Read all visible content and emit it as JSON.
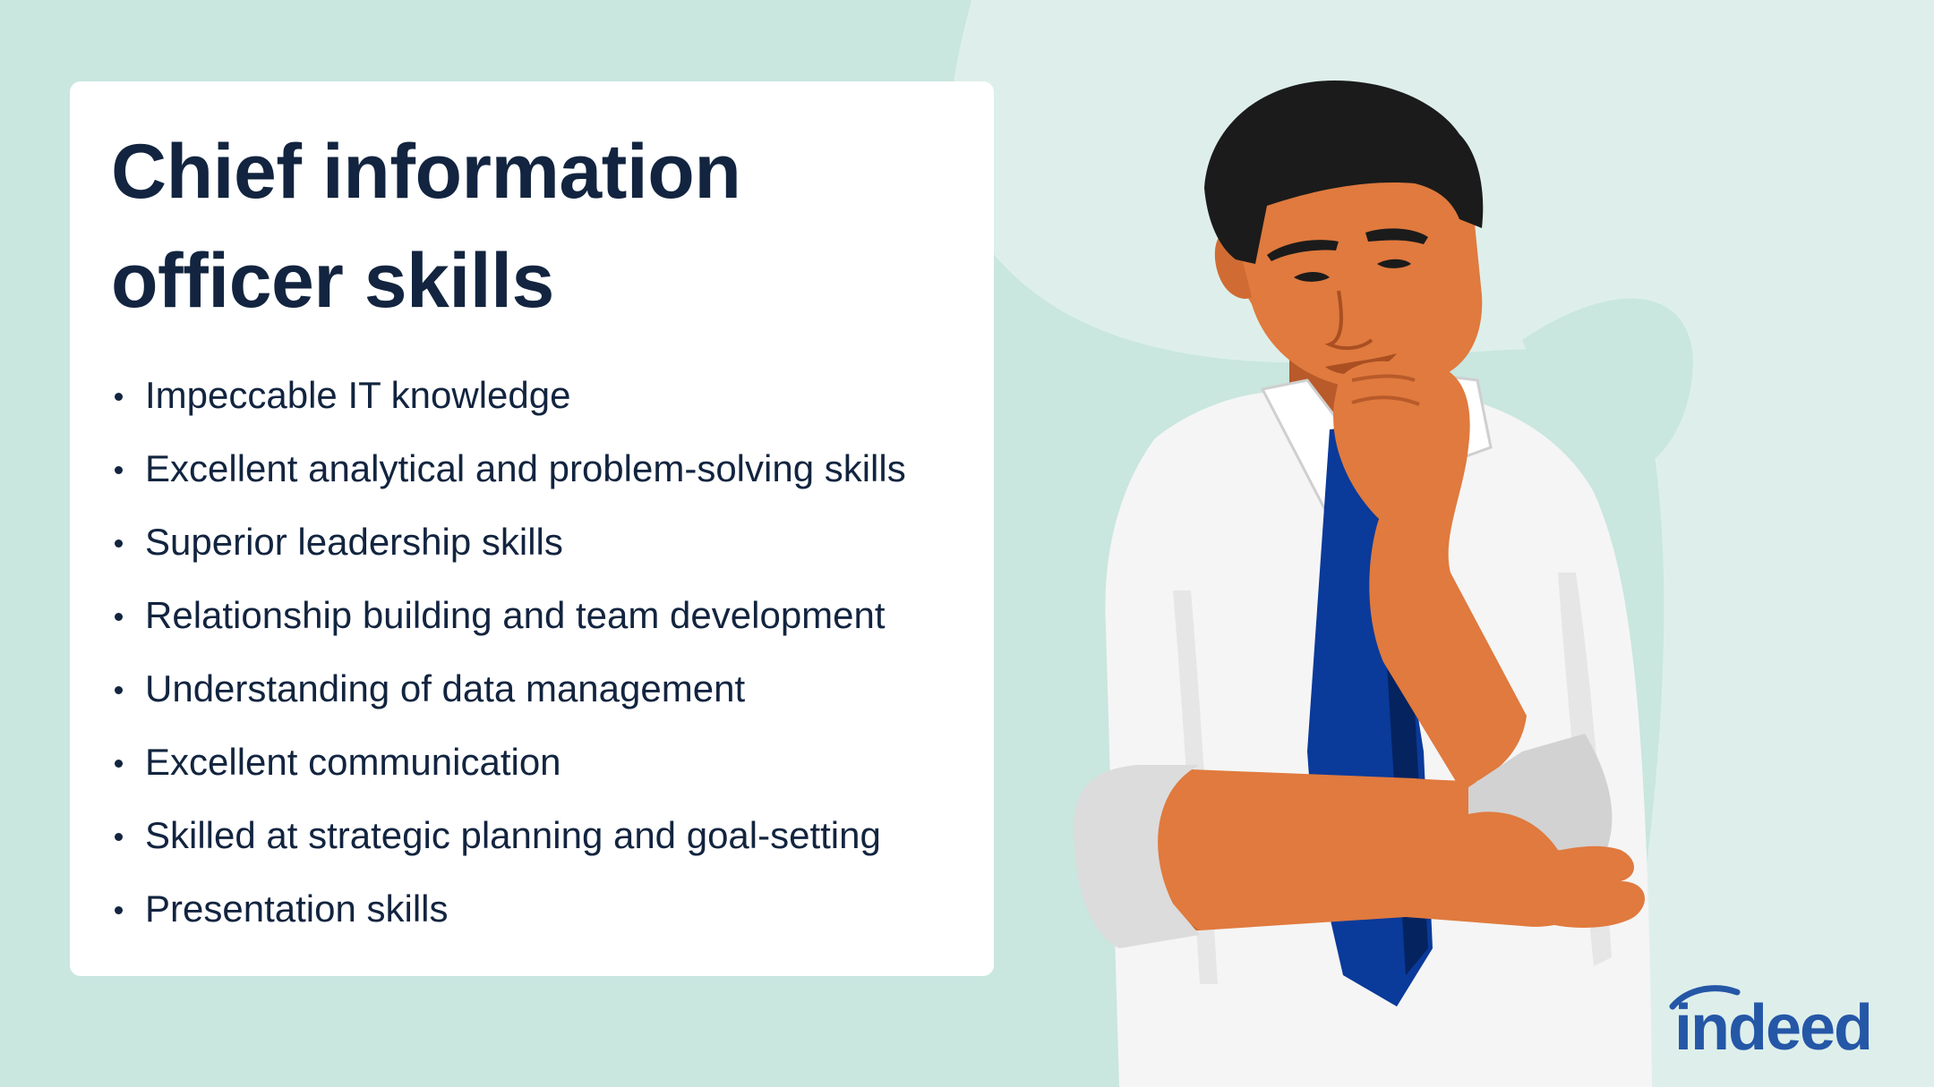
{
  "title": "Chief information officer skills",
  "skills": [
    "Impeccable IT knowledge",
    "Excellent analytical and problem-solving skills",
    "Superior leadership skills",
    "Relationship building and team development",
    "Understanding of data management",
    "Excellent communication",
    "Skilled at strategic planning and goal-setting",
    "Presentation skills"
  ],
  "logo_text": "indeed",
  "colors": {
    "background": "#c9e6df",
    "background_light": "#deefeb",
    "card": "#ffffff",
    "text": "#12243f",
    "brand": "#2557a7",
    "tie": "#0a3a9a",
    "skin": "#e07a3e",
    "hair": "#1b1b1b",
    "shirt": "#f5f5f5"
  },
  "icons": {
    "illustration": "thinking-man-illustration",
    "logo": "indeed-logo-icon"
  }
}
